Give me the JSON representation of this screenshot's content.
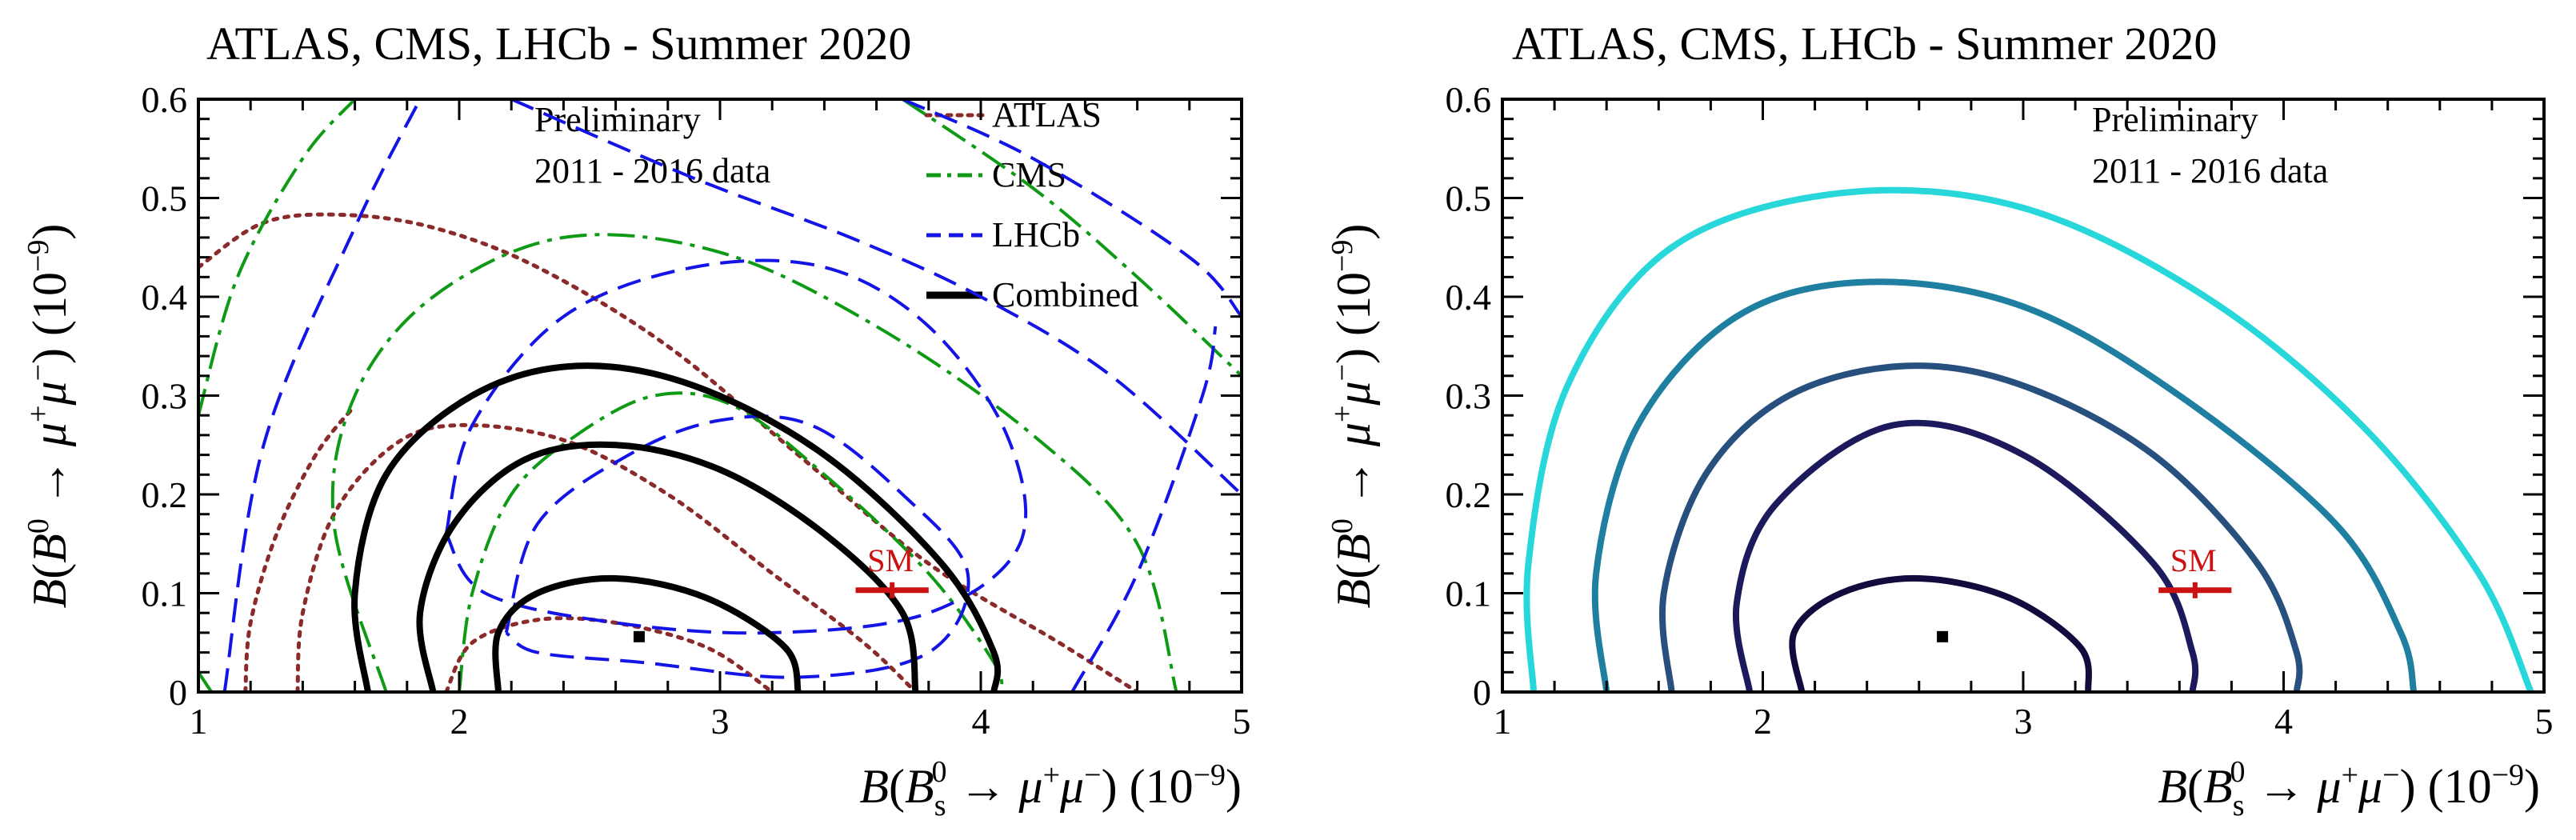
{
  "figure_title": "ATLAS, CMS, LHCb - Summer 2020",
  "chart_data": [
    {
      "type": "contour",
      "title": "ATLAS, CMS, LHCb - Summer 2020",
      "notes": [
        "Preliminary",
        "2011 - 2016 data"
      ],
      "xlabel": "B(B⁰s → μ⁺μ⁻) (10⁻⁹)",
      "ylabel": "B(B⁰ → μ⁺μ⁻) (10⁻⁹)",
      "xlim": [
        1,
        5
      ],
      "ylim": [
        0,
        0.6
      ],
      "xticks": [
        "1",
        "2",
        "3",
        "4",
        "5"
      ],
      "yticks": [
        "0",
        "0.1",
        "0.2",
        "0.3",
        "0.4",
        "0.5",
        "0.6"
      ],
      "legend_position": "top-right",
      "legend": [
        {
          "label": "ATLAS",
          "style": "dotted",
          "color": "#8b2a2a"
        },
        {
          "label": "CMS",
          "style": "dash-dot",
          "color": "#0f9a16"
        },
        {
          "label": "LHCb",
          "style": "dashed",
          "color": "#1414e6"
        },
        {
          "label": "Combined",
          "style": "solid",
          "color": "#000000"
        }
      ],
      "best_fit": {
        "x": 2.69,
        "y": 0.056
      },
      "sm": {
        "label": "SM",
        "x": 3.66,
        "y": 0.103,
        "x_err": 0.14
      },
      "contours": [
        {
          "series": "ATLAS",
          "color": "#8b2a2a",
          "style": "dotted",
          "points": [
            [
              1.95,
              0
            ],
            [
              2.05,
              0.05
            ],
            [
              2.3,
              0.073
            ],
            [
              2.6,
              0.07
            ],
            [
              2.95,
              0.045
            ],
            [
              3.2,
              0
            ]
          ]
        },
        {
          "series": "ATLAS",
          "color": "#8b2a2a",
          "style": "dotted",
          "points": [
            [
              1.38,
              0
            ],
            [
              1.4,
              0.08
            ],
            [
              1.52,
              0.18
            ],
            [
              1.75,
              0.25
            ],
            [
              2.0,
              0.27
            ],
            [
              2.4,
              0.255
            ],
            [
              2.8,
              0.2
            ],
            [
              3.2,
              0.12
            ],
            [
              3.55,
              0.05
            ],
            [
              3.75,
              0
            ]
          ]
        },
        {
          "series": "ATLAS",
          "color": "#8b2a2a",
          "style": "dotted",
          "points": [
            [
              1.0,
              0.43
            ],
            [
              1.25,
              0.475
            ],
            [
              1.55,
              0.483
            ],
            [
              1.9,
              0.47
            ],
            [
              2.3,
              0.43
            ],
            [
              2.8,
              0.35
            ],
            [
              3.3,
              0.24
            ],
            [
              3.8,
              0.13
            ],
            [
              4.3,
              0.05
            ],
            [
              4.6,
              0
            ]
          ]
        },
        {
          "series": "ATLAS",
          "color": "#8b2a2a",
          "style": "dotted",
          "points": [
            [
              1.18,
              0
            ],
            [
              1.2,
              0.07
            ],
            [
              1.3,
              0.16
            ],
            [
              1.45,
              0.24
            ],
            [
              1.6,
              0.29
            ]
          ]
        },
        {
          "series": "CMS",
          "color": "#0f9a16",
          "style": "dash-dot",
          "points": [
            [
              2.0,
              0
            ],
            [
              2.05,
              0.1
            ],
            [
              2.2,
              0.2
            ],
            [
              2.45,
              0.26
            ],
            [
              2.75,
              0.3
            ],
            [
              3.05,
              0.29
            ],
            [
              3.4,
              0.22
            ],
            [
              3.8,
              0.12
            ],
            [
              4.05,
              0.03
            ],
            [
              4.08,
              0
            ]
          ]
        },
        {
          "series": "CMS",
          "color": "#0f9a16",
          "style": "dash-dot",
          "points": [
            [
              1.72,
              0
            ],
            [
              1.52,
              0.17
            ],
            [
              1.6,
              0.3
            ],
            [
              1.9,
              0.4
            ],
            [
              2.4,
              0.46
            ],
            [
              3.0,
              0.445
            ],
            [
              3.6,
              0.37
            ],
            [
              4.2,
              0.26
            ],
            [
              4.6,
              0.15
            ],
            [
              4.75,
              0
            ]
          ]
        },
        {
          "series": "CMS",
          "color": "#0f9a16",
          "style": "dash-dot",
          "points": [
            [
              1.0,
              0.28
            ],
            [
              1.15,
              0.42
            ],
            [
              1.4,
              0.54
            ],
            [
              1.6,
              0.6
            ]
          ]
        },
        {
          "series": "CMS",
          "color": "#0f9a16",
          "style": "dash-dot",
          "points": [
            [
              3.7,
              0.6
            ],
            [
              4.2,
              0.51
            ],
            [
              4.6,
              0.42
            ],
            [
              5.0,
              0.32
            ]
          ]
        },
        {
          "series": "CMS",
          "color": "#0f9a16",
          "style": "dash-dot",
          "points": [
            [
              1.0,
              0.02
            ],
            [
              1.05,
              0
            ]
          ]
        },
        {
          "series": "LHCb",
          "color": "#1414e6",
          "style": "dashed",
          "points": [
            [
              2.18,
              0.06
            ],
            [
              2.3,
              0.17
            ],
            [
              2.65,
              0.24
            ],
            [
              3.0,
              0.275
            ],
            [
              3.35,
              0.27
            ],
            [
              3.7,
              0.2
            ],
            [
              3.95,
              0.12
            ],
            [
              3.8,
              0.04
            ],
            [
              3.3,
              0.015
            ],
            [
              2.7,
              0.03
            ],
            [
              2.3,
              0.04
            ],
            [
              2.18,
              0.06
            ]
          ]
        },
        {
          "series": "LHCb",
          "color": "#1414e6",
          "style": "dashed",
          "points": [
            [
              1.95,
              0.16
            ],
            [
              2.05,
              0.27
            ],
            [
              2.4,
              0.38
            ],
            [
              2.9,
              0.43
            ],
            [
              3.4,
              0.43
            ],
            [
              3.8,
              0.37
            ],
            [
              4.1,
              0.26
            ],
            [
              4.15,
              0.15
            ],
            [
              3.8,
              0.08
            ],
            [
              3.2,
              0.06
            ],
            [
              2.6,
              0.07
            ],
            [
              2.1,
              0.1
            ],
            [
              1.95,
              0.16
            ]
          ]
        },
        {
          "series": "LHCb",
          "color": "#1414e6",
          "style": "dashed",
          "points": [
            [
              1.1,
              0
            ],
            [
              1.25,
              0.25
            ],
            [
              1.6,
              0.47
            ],
            [
              1.85,
              0.6
            ]
          ]
        },
        {
          "series": "LHCb",
          "color": "#1414e6",
          "style": "dashed",
          "points": [
            [
              2.2,
              0.6
            ],
            [
              2.9,
              0.52
            ],
            [
              3.5,
              0.46
            ],
            [
              4.0,
              0.4
            ],
            [
              4.5,
              0.32
            ],
            [
              5.0,
              0.2
            ]
          ]
        },
        {
          "series": "LHCb",
          "color": "#1414e6",
          "style": "dashed",
          "points": [
            [
              3.7,
              0.6
            ],
            [
              4.2,
              0.54
            ],
            [
              4.8,
              0.44
            ],
            [
              5.0,
              0.38
            ]
          ]
        },
        {
          "series": "LHCb",
          "color": "#1414e6",
          "style": "dashed",
          "points": [
            [
              4.35,
              0
            ],
            [
              4.6,
              0.12
            ],
            [
              4.85,
              0.3
            ],
            [
              4.9,
              0.37
            ]
          ]
        },
        {
          "series": "Combined",
          "color": "#000000",
          "style": "solid",
          "points": [
            [
              2.15,
              0
            ],
            [
              2.15,
              0.06
            ],
            [
              2.3,
              0.1
            ],
            [
              2.6,
              0.115
            ],
            [
              2.95,
              0.095
            ],
            [
              3.25,
              0.045
            ],
            [
              3.3,
              0
            ]
          ]
        },
        {
          "series": "Combined",
          "color": "#000000",
          "style": "solid",
          "points": [
            [
              1.9,
              0
            ],
            [
              1.85,
              0.08
            ],
            [
              1.98,
              0.17
            ],
            [
              2.25,
              0.235
            ],
            [
              2.6,
              0.25
            ],
            [
              3.0,
              0.225
            ],
            [
              3.4,
              0.16
            ],
            [
              3.7,
              0.08
            ],
            [
              3.75,
              0
            ]
          ]
        },
        {
          "series": "Combined",
          "color": "#000000",
          "style": "solid",
          "points": [
            [
              1.65,
              0
            ],
            [
              1.6,
              0.1
            ],
            [
              1.72,
              0.22
            ],
            [
              2.05,
              0.3
            ],
            [
              2.45,
              0.33
            ],
            [
              2.9,
              0.31
            ],
            [
              3.4,
              0.24
            ],
            [
              3.85,
              0.13
            ],
            [
              4.05,
              0.04
            ],
            [
              4.05,
              0
            ]
          ]
        }
      ]
    },
    {
      "type": "contour",
      "title": "ATLAS, CMS, LHCb - Summer 2020",
      "notes": [
        "Preliminary",
        "2011 - 2016 data"
      ],
      "xlabel": "B(B⁰s → μ⁺μ⁻) (10⁻⁹)",
      "ylabel": "B(B⁰ → μ⁺μ⁻) (10⁻⁹)",
      "xlim": [
        1,
        5
      ],
      "ylim": [
        0,
        0.6
      ],
      "xticks": [
        "1",
        "2",
        "3",
        "4",
        "5"
      ],
      "yticks": [
        "0",
        "0.1",
        "0.2",
        "0.3",
        "0.4",
        "0.5",
        "0.6"
      ],
      "best_fit": {
        "x": 2.69,
        "y": 0.056
      },
      "sm": {
        "label": "SM",
        "x": 3.66,
        "y": 0.103,
        "x_err": 0.14
      },
      "contours": [
        {
          "color": "#120c3e",
          "points": [
            [
              2.15,
              0
            ],
            [
              2.12,
              0.06
            ],
            [
              2.3,
              0.1
            ],
            [
              2.6,
              0.115
            ],
            [
              2.95,
              0.095
            ],
            [
              3.22,
              0.045
            ],
            [
              3.25,
              0
            ]
          ]
        },
        {
          "color": "#1c1a5c",
          "points": [
            [
              1.95,
              0
            ],
            [
              1.9,
              0.09
            ],
            [
              2.05,
              0.19
            ],
            [
              2.5,
              0.27
            ],
            [
              3.0,
              0.24
            ],
            [
              3.5,
              0.13
            ],
            [
              3.65,
              0.04
            ],
            [
              3.65,
              0
            ]
          ]
        },
        {
          "color": "#27507e",
          "points": [
            [
              1.65,
              0
            ],
            [
              1.62,
              0.1
            ],
            [
              1.78,
              0.22
            ],
            [
              2.1,
              0.3
            ],
            [
              2.55,
              0.33
            ],
            [
              3.0,
              0.31
            ],
            [
              3.5,
              0.24
            ],
            [
              3.9,
              0.13
            ],
            [
              4.05,
              0.04
            ],
            [
              4.05,
              0
            ]
          ]
        },
        {
          "color": "#1f7fa0",
          "points": [
            [
              1.4,
              0
            ],
            [
              1.36,
              0.12
            ],
            [
              1.52,
              0.27
            ],
            [
              1.9,
              0.38
            ],
            [
              2.4,
              0.415
            ],
            [
              3.0,
              0.39
            ],
            [
              3.6,
              0.3
            ],
            [
              4.2,
              0.17
            ],
            [
              4.45,
              0.06
            ],
            [
              4.5,
              0
            ]
          ]
        },
        {
          "color": "#27d7da",
          "points": [
            [
              1.12,
              0
            ],
            [
              1.1,
              0.13
            ],
            [
              1.25,
              0.31
            ],
            [
              1.65,
              0.45
            ],
            [
              2.3,
              0.505
            ],
            [
              3.0,
              0.49
            ],
            [
              3.7,
              0.4
            ],
            [
              4.3,
              0.27
            ],
            [
              4.75,
              0.12
            ],
            [
              4.95,
              0
            ]
          ]
        }
      ]
    }
  ]
}
